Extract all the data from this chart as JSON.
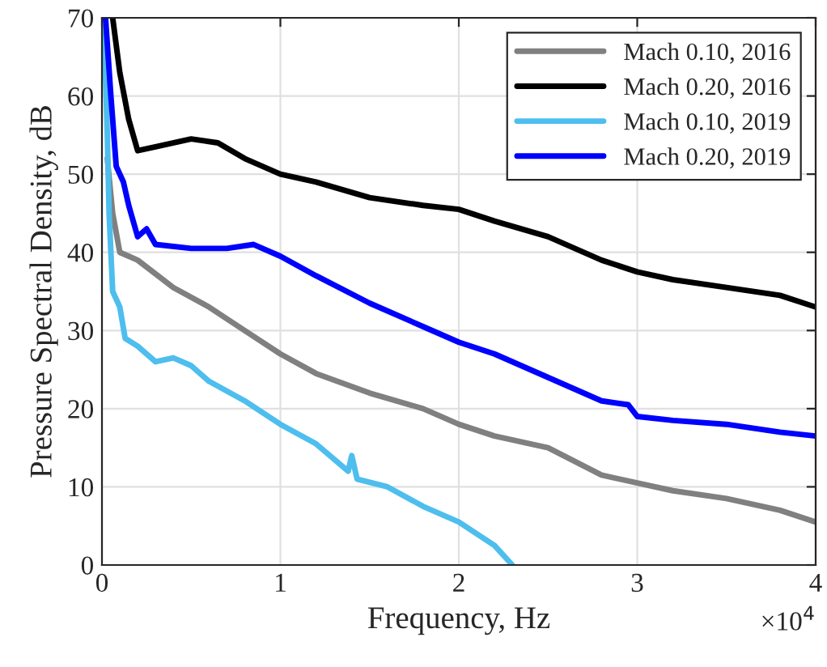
{
  "chart_data": {
    "type": "line",
    "xlabel": "Frequency, Hz",
    "ylabel": "Pressure Spectral Density, dB",
    "xlim": [
      0,
      4
    ],
    "xticks": [
      0,
      1,
      2,
      3,
      4
    ],
    "ylim": [
      0,
      70
    ],
    "yticks": [
      0,
      10,
      20,
      30,
      40,
      50,
      60,
      70
    ],
    "grid": true,
    "legend": "top right",
    "line_style": "solid",
    "marker": "none",
    "annotations": [
      "×10$^{4}$"
    ],
    "series": [
      {
        "name": "Mach 0.10, 2016",
        "color": "#808080",
        "x": [
          0.03,
          0.06,
          0.1,
          0.15,
          0.2,
          0.4,
          0.6,
          0.8,
          1.0,
          1.2,
          1.5,
          1.8,
          2.0,
          2.2,
          2.5,
          2.8,
          3.0,
          3.2,
          3.5,
          3.8,
          4.0
        ],
        "values": [
          52,
          45,
          40,
          39.5,
          39,
          35.5,
          33,
          30,
          27,
          24.5,
          22,
          20,
          18,
          16.5,
          15,
          11.5,
          10.5,
          9.5,
          8.5,
          7,
          5.5
        ]
      },
      {
        "name": "Mach 0.20, 2016",
        "color": "#000000",
        "x": [
          0.06,
          0.1,
          0.15,
          0.2,
          0.3,
          0.5,
          0.65,
          0.8,
          1.0,
          1.2,
          1.5,
          1.8,
          2.0,
          2.2,
          2.5,
          2.8,
          3.0,
          3.2,
          3.5,
          3.8,
          4.0
        ],
        "values": [
          70,
          63,
          57,
          53,
          53.5,
          54.5,
          54,
          52,
          50,
          49,
          47,
          46,
          45.5,
          44,
          42,
          39,
          37.5,
          36.5,
          35.5,
          34.5,
          33
        ]
      },
      {
        "name": "Mach 0.10, 2019",
        "color": "#4dbeee",
        "x": [
          0.01,
          0.03,
          0.04,
          0.06,
          0.1,
          0.13,
          0.2,
          0.3,
          0.4,
          0.5,
          0.6,
          0.8,
          1.0,
          1.2,
          1.38,
          1.4,
          1.43,
          1.6,
          1.8,
          2.0,
          2.2,
          2.3
        ],
        "values": [
          70,
          55,
          45,
          35,
          33,
          29,
          28,
          26,
          26.5,
          25.5,
          23.5,
          21,
          18,
          15.5,
          12,
          14,
          11,
          10,
          7.5,
          5.5,
          2.5,
          0
        ]
      },
      {
        "name": "Mach 0.20, 2019",
        "color": "#0000ff",
        "x": [
          0.02,
          0.05,
          0.08,
          0.12,
          0.15,
          0.2,
          0.25,
          0.3,
          0.5,
          0.7,
          0.85,
          1.0,
          1.2,
          1.5,
          1.8,
          2.0,
          2.2,
          2.5,
          2.8,
          2.95,
          3.0,
          3.2,
          3.5,
          3.8,
          4.0
        ],
        "values": [
          70,
          60,
          51,
          49,
          46,
          42,
          43,
          41,
          40.5,
          40.5,
          41,
          39.5,
          37,
          33.5,
          30.5,
          28.5,
          27,
          24,
          21,
          20.5,
          19,
          18.5,
          18,
          17,
          16.5
        ]
      }
    ]
  }
}
